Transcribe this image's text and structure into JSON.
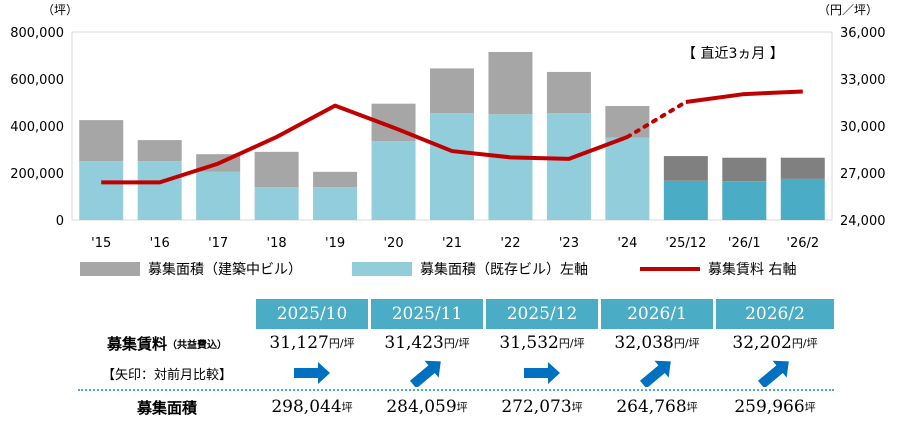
{
  "chart_data": {
    "type": "bar+line",
    "categories": [
      "'15",
      "'16",
      "'17",
      "'18",
      "'19",
      "'20",
      "'21",
      "'22",
      "'23",
      "'24",
      "'25/12",
      "'26/1",
      "'26/2"
    ],
    "series": [
      {
        "name": "募集面積（建築中ビル）",
        "axis": "left",
        "kind": "stacked-bar",
        "values": [
          175000,
          90000,
          75000,
          150000,
          65000,
          160000,
          190000,
          265000,
          175000,
          135000,
          105000,
          100000,
          90000
        ]
      },
      {
        "name": "募集面積（既存ビル）左軸",
        "axis": "left",
        "kind": "stacked-bar",
        "values": [
          250000,
          250000,
          205000,
          140000,
          140000,
          335000,
          455000,
          450000,
          455000,
          350000,
          167000,
          165000,
          175000
        ]
      },
      {
        "name": "募集賃料 右軸",
        "axis": "right",
        "kind": "line",
        "values": [
          26400,
          26400,
          27600,
          29300,
          31300,
          29900,
          28400,
          28000,
          27900,
          29300,
          31532,
          32038,
          32202
        ]
      }
    ],
    "left_axis": {
      "unit": "（坪）",
      "ylim": [
        0,
        800000
      ],
      "ticks": [
        "0",
        "200,000",
        "400,000",
        "600,000",
        "800,000"
      ]
    },
    "right_axis": {
      "unit": "（円／坪）",
      "ylim": [
        24000,
        36000
      ],
      "ticks": [
        "24,000",
        "27,000",
        "30,000",
        "33,000",
        "36,000"
      ]
    },
    "annotation": "【 直近3ヵ月 】"
  },
  "colors": {
    "building": "#a6a6a6",
    "building_recent": "#808080",
    "existing": "#92cddc",
    "existing_recent": "#4bacc6",
    "rent": "#c00000",
    "arrow": "#0070c0"
  },
  "legend": [
    "募集面積（建築中ビル）",
    "募集面積（既存ビル）左軸",
    "募集賃料 右軸"
  ],
  "table": {
    "months": [
      "2025/10",
      "2025/11",
      "2025/12",
      "2026/1",
      "2026/2"
    ],
    "rent_label": "募集賃料",
    "rent_label_note": "（共益費込）",
    "arrow_label": "【矢印：対前月比較】",
    "area_label": "募集面積",
    "rent_unit": "円/坪",
    "area_unit": "坪",
    "rents": [
      "31,127",
      "31,423",
      "31,532",
      "32,038",
      "32,202"
    ],
    "arrows": [
      "right",
      "up-right",
      "right",
      "up-right",
      "up-right"
    ],
    "areas": [
      "298,044",
      "284,059",
      "272,073",
      "264,768",
      "259,966"
    ]
  }
}
